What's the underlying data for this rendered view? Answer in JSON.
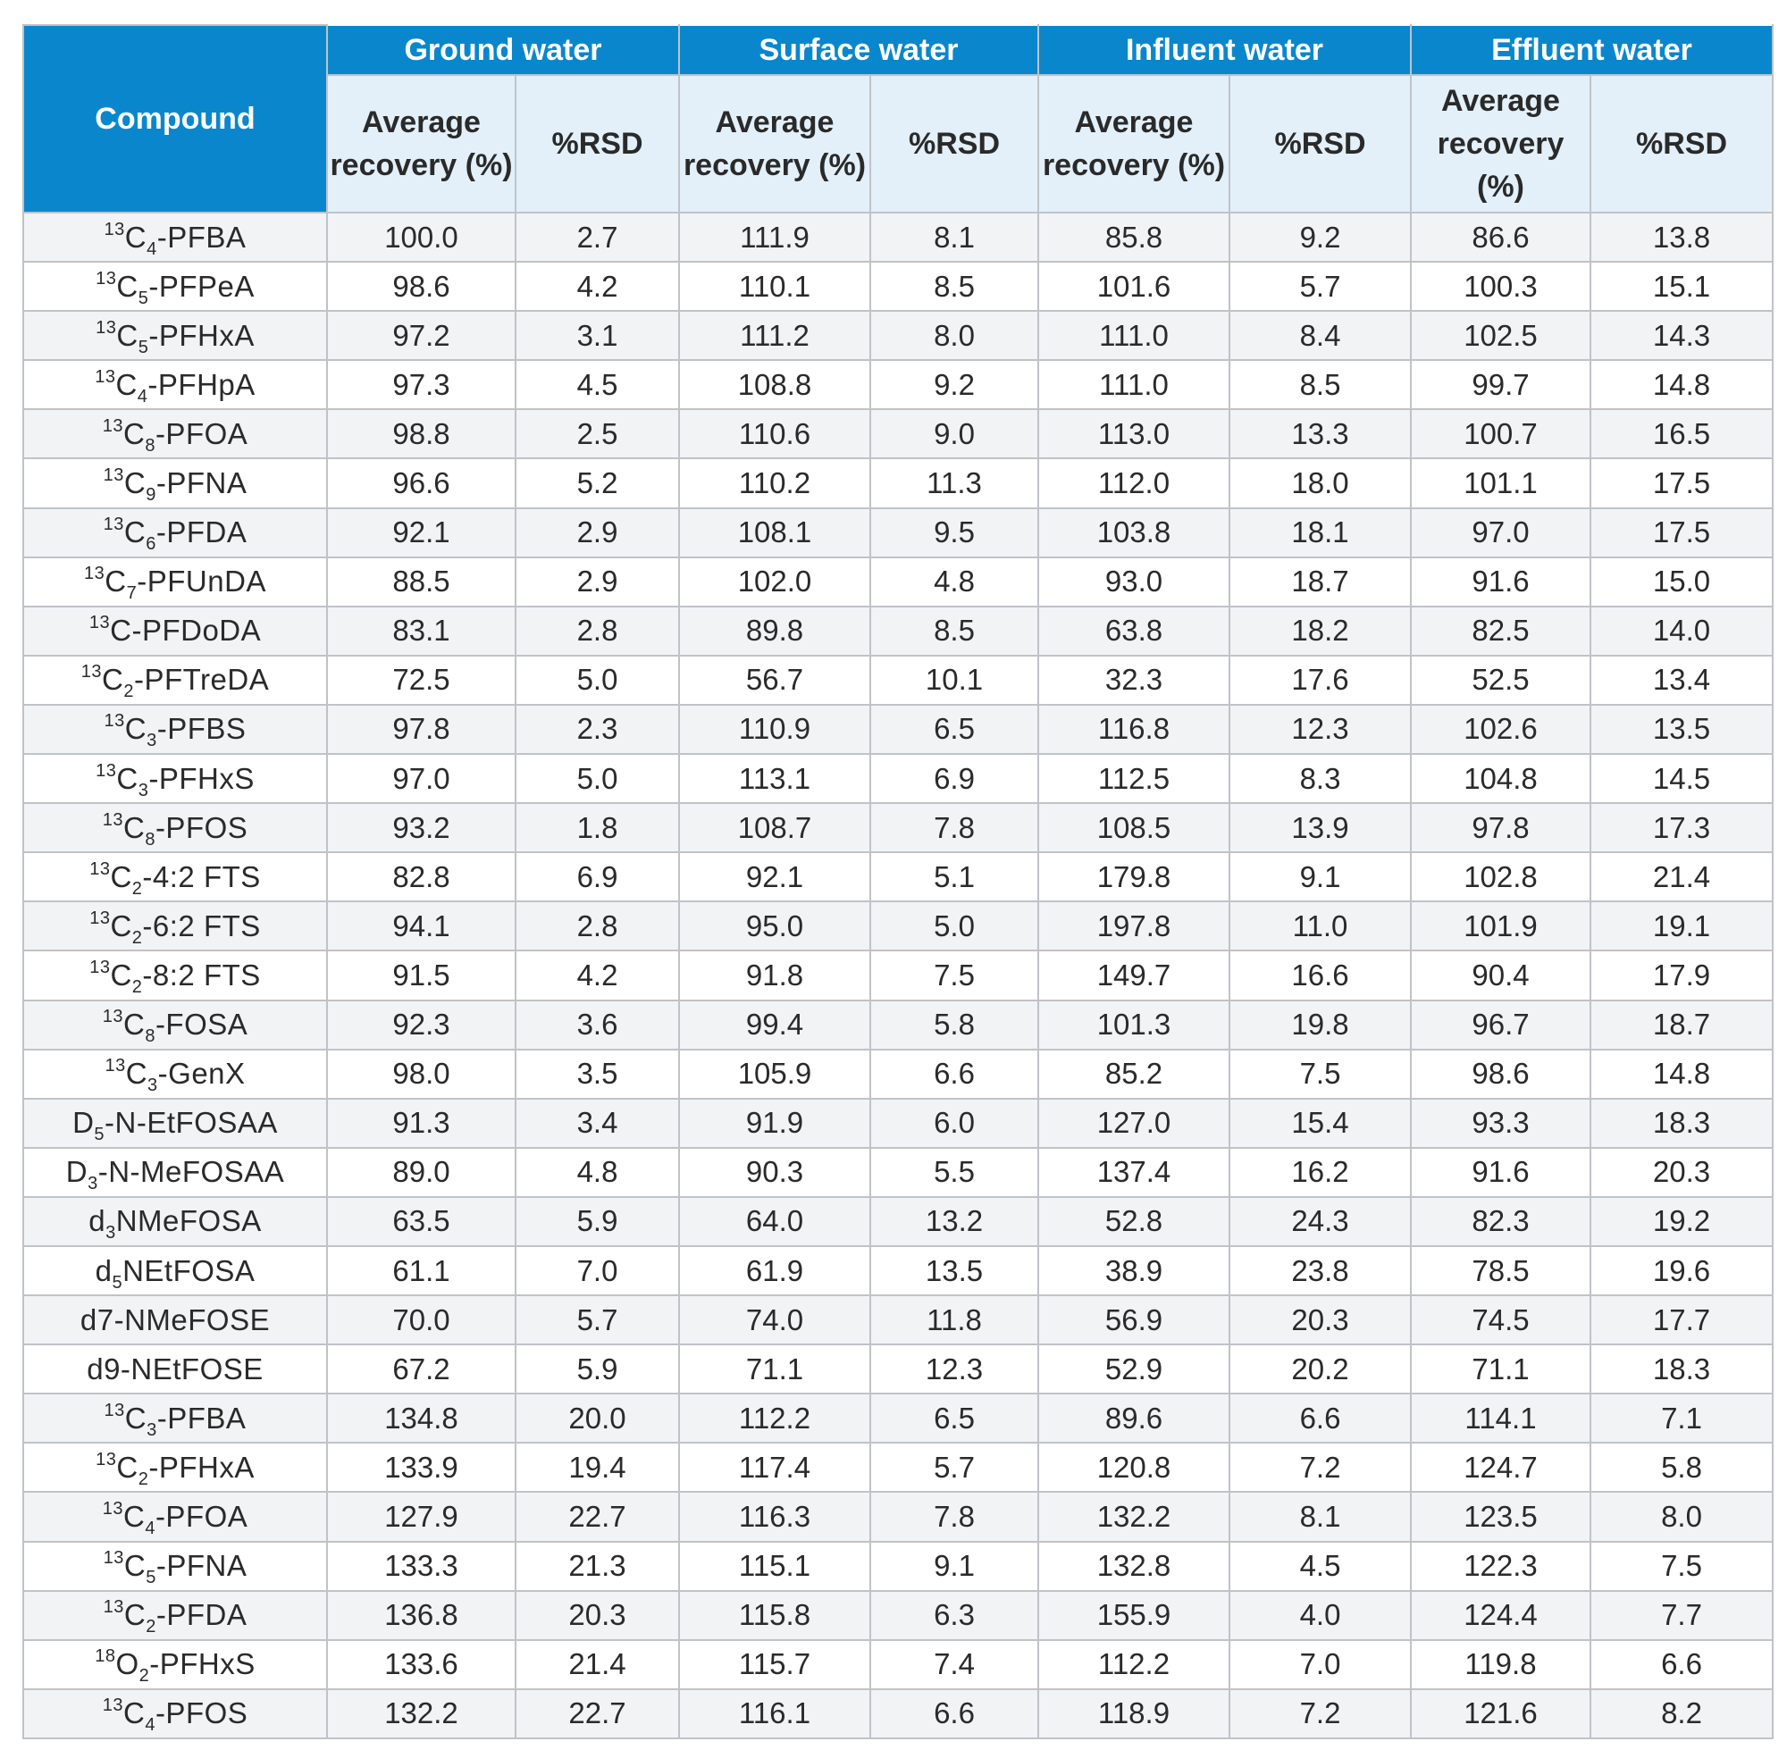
{
  "header": {
    "compound": "Compound",
    "groups": [
      "Ground water",
      "Surface water",
      "Influent water",
      "Effluent water"
    ],
    "avg_recovery": "Average recovery (%)",
    "rsd": "%RSD"
  },
  "rows": [
    {
      "pre": "",
      "sup": "13",
      "base": "C",
      "sub": "4",
      "rest": "-PFBA",
      "values": [
        "100.0",
        "2.7",
        "111.9",
        "8.1",
        "85.8",
        "9.2",
        "86.6",
        "13.8"
      ]
    },
    {
      "pre": "",
      "sup": "13",
      "base": "C",
      "sub": "5",
      "rest": "-PFPeA",
      "values": [
        "98.6",
        "4.2",
        "110.1",
        "8.5",
        "101.6",
        "5.7",
        "100.3",
        "15.1"
      ]
    },
    {
      "pre": "",
      "sup": "13",
      "base": "C",
      "sub": "5",
      "rest": "-PFHxA",
      "values": [
        "97.2",
        "3.1",
        "111.2",
        "8.0",
        "111.0",
        "8.4",
        "102.5",
        "14.3"
      ]
    },
    {
      "pre": "",
      "sup": "13",
      "base": "C",
      "sub": "4",
      "rest": "-PFHpA",
      "values": [
        "97.3",
        "4.5",
        "108.8",
        "9.2",
        "111.0",
        "8.5",
        "99.7",
        "14.8"
      ]
    },
    {
      "pre": "",
      "sup": "13",
      "base": "C",
      "sub": "8",
      "rest": "-PFOA",
      "values": [
        "98.8",
        "2.5",
        "110.6",
        "9.0",
        "113.0",
        "13.3",
        "100.7",
        "16.5"
      ]
    },
    {
      "pre": "",
      "sup": "13",
      "base": "C",
      "sub": "9",
      "rest": "-PFNA",
      "values": [
        "96.6",
        "5.2",
        "110.2",
        "11.3",
        "112.0",
        "18.0",
        "101.1",
        "17.5"
      ]
    },
    {
      "pre": "",
      "sup": "13",
      "base": "C",
      "sub": "6",
      "rest": "-PFDA",
      "values": [
        "92.1",
        "2.9",
        "108.1",
        "9.5",
        "103.8",
        "18.1",
        "97.0",
        "17.5"
      ]
    },
    {
      "pre": "",
      "sup": "13",
      "base": "C",
      "sub": "7",
      "rest": "-PFUnDA",
      "values": [
        "88.5",
        "2.9",
        "102.0",
        "4.8",
        "93.0",
        "18.7",
        "91.6",
        "15.0"
      ]
    },
    {
      "pre": "",
      "sup": "13",
      "base": "C",
      "sub": "",
      "rest": "-PFDoDA",
      "values": [
        "83.1",
        "2.8",
        "89.8",
        "8.5",
        "63.8",
        "18.2",
        "82.5",
        "14.0"
      ]
    },
    {
      "pre": "",
      "sup": "13",
      "base": "C",
      "sub": "2",
      "rest": "-PFTreDA",
      "values": [
        "72.5",
        "5.0",
        "56.7",
        "10.1",
        "32.3",
        "17.6",
        "52.5",
        "13.4"
      ]
    },
    {
      "pre": "",
      "sup": "13",
      "base": "C",
      "sub": "3",
      "rest": "-PFBS",
      "values": [
        "97.8",
        "2.3",
        "110.9",
        "6.5",
        "116.8",
        "12.3",
        "102.6",
        "13.5"
      ]
    },
    {
      "pre": "",
      "sup": "13",
      "base": "C",
      "sub": "3",
      "rest": "-PFHxS",
      "values": [
        "97.0",
        "5.0",
        "113.1",
        "6.9",
        "112.5",
        "8.3",
        "104.8",
        "14.5"
      ]
    },
    {
      "pre": "",
      "sup": "13",
      "base": "C",
      "sub": "8",
      "rest": "-PFOS",
      "values": [
        "93.2",
        "1.8",
        "108.7",
        "7.8",
        "108.5",
        "13.9",
        "97.8",
        "17.3"
      ]
    },
    {
      "pre": "",
      "sup": "13",
      "base": "C",
      "sub": "2",
      "rest": "-4:2 FTS",
      "values": [
        "82.8",
        "6.9",
        "92.1",
        "5.1",
        "179.8",
        "9.1",
        "102.8",
        "21.4"
      ]
    },
    {
      "pre": "",
      "sup": "13",
      "base": "C",
      "sub": "2",
      "rest": "-6:2 FTS",
      "values": [
        "94.1",
        "2.8",
        "95.0",
        "5.0",
        "197.8",
        "11.0",
        "101.9",
        "19.1"
      ]
    },
    {
      "pre": "",
      "sup": "13",
      "base": "C",
      "sub": "2",
      "rest": "-8:2 FTS",
      "values": [
        "91.5",
        "4.2",
        "91.8",
        "7.5",
        "149.7",
        "16.6",
        "90.4",
        "17.9"
      ]
    },
    {
      "pre": "",
      "sup": "13",
      "base": "C",
      "sub": "8",
      "rest": "-FOSA",
      "values": [
        "92.3",
        "3.6",
        "99.4",
        "5.8",
        "101.3",
        "19.8",
        "96.7",
        "18.7"
      ]
    },
    {
      "pre": "",
      "sup": "13",
      "base": "C",
      "sub": "3",
      "rest": "-GenX",
      "values": [
        "98.0",
        "3.5",
        "105.9",
        "6.6",
        "85.2",
        "7.5",
        "98.6",
        "14.8"
      ]
    },
    {
      "pre": "",
      "sup": "",
      "base": "D",
      "sub": "5",
      "rest": "-N-EtFOSAA",
      "values": [
        "91.3",
        "3.4",
        "91.9",
        "6.0",
        "127.0",
        "15.4",
        "93.3",
        "18.3"
      ]
    },
    {
      "pre": "",
      "sup": "",
      "base": "D",
      "sub": "3",
      "rest": "-N-MeFOSAA",
      "values": [
        "89.0",
        "4.8",
        "90.3",
        "5.5",
        "137.4",
        "16.2",
        "91.6",
        "20.3"
      ]
    },
    {
      "pre": "",
      "sup": "",
      "base": "d",
      "sub": "3",
      "rest": "NMeFOSA",
      "values": [
        "63.5",
        "5.9",
        "64.0",
        "13.2",
        "52.8",
        "24.3",
        "82.3",
        "19.2"
      ]
    },
    {
      "pre": "",
      "sup": "",
      "base": "d",
      "sub": "5",
      "rest": "NEtFOSA",
      "values": [
        "61.1",
        "7.0",
        "61.9",
        "13.5",
        "38.9",
        "23.8",
        "78.5",
        "19.6"
      ]
    },
    {
      "pre": "",
      "sup": "",
      "base": "d7-NMeFOSE",
      "sub": "",
      "rest": "",
      "values": [
        "70.0",
        "5.7",
        "74.0",
        "11.8",
        "56.9",
        "20.3",
        "74.5",
        "17.7"
      ]
    },
    {
      "pre": "",
      "sup": "",
      "base": "d9-NEtFOSE",
      "sub": "",
      "rest": "",
      "values": [
        "67.2",
        "5.9",
        "71.1",
        "12.3",
        "52.9",
        "20.2",
        "71.1",
        "18.3"
      ]
    },
    {
      "pre": "",
      "sup": "13",
      "base": "C",
      "sub": "3",
      "rest": "-PFBA",
      "values": [
        "134.8",
        "20.0",
        "112.2",
        "6.5",
        "89.6",
        "6.6",
        "114.1",
        "7.1"
      ]
    },
    {
      "pre": "",
      "sup": "13",
      "base": "C",
      "sub": "2",
      "rest": "-PFHxA",
      "values": [
        "133.9",
        "19.4",
        "117.4",
        "5.7",
        "120.8",
        "7.2",
        "124.7",
        "5.8"
      ]
    },
    {
      "pre": "",
      "sup": "13",
      "base": "C",
      "sub": "4",
      "rest": "-PFOA",
      "values": [
        "127.9",
        "22.7",
        "116.3",
        "7.8",
        "132.2",
        "8.1",
        "123.5",
        "8.0"
      ]
    },
    {
      "pre": "",
      "sup": "13",
      "base": "C",
      "sub": "5",
      "rest": "-PFNA",
      "values": [
        "133.3",
        "21.3",
        "115.1",
        "9.1",
        "132.8",
        "4.5",
        "122.3",
        "7.5"
      ]
    },
    {
      "pre": "",
      "sup": "13",
      "base": "C",
      "sub": "2",
      "rest": "-PFDA",
      "values": [
        "136.8",
        "20.3",
        "115.8",
        "6.3",
        "155.9",
        "4.0",
        "124.4",
        "7.7"
      ]
    },
    {
      "pre": "",
      "sup": "18",
      "base": "O",
      "sub": "2",
      "rest": "-PFHxS",
      "values": [
        "133.6",
        "21.4",
        "115.7",
        "7.4",
        "112.2",
        "7.0",
        "119.8",
        "6.6"
      ]
    },
    {
      "pre": "",
      "sup": "13",
      "base": "C",
      "sub": "4",
      "rest": "-PFOS",
      "values": [
        "132.2",
        "22.7",
        "116.1",
        "6.6",
        "118.9",
        "7.2",
        "121.6",
        "8.2"
      ]
    }
  ]
}
